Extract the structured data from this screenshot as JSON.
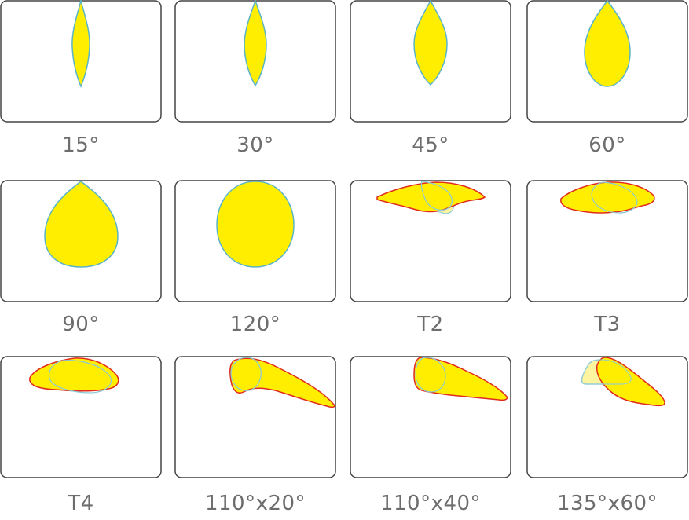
{
  "beams": [
    {
      "label": "15°",
      "kind": "symmetric",
      "icon": "narrow-beam-icon"
    },
    {
      "label": "30°",
      "kind": "symmetric",
      "icon": "narrow-beam-icon"
    },
    {
      "label": "45°",
      "kind": "symmetric",
      "icon": "medium-beam-icon"
    },
    {
      "label": "60°",
      "kind": "symmetric",
      "icon": "medium-beam-icon"
    },
    {
      "label": "90°",
      "kind": "symmetric",
      "icon": "wide-beam-icon"
    },
    {
      "label": "120°",
      "kind": "symmetric",
      "icon": "wide-beam-icon"
    },
    {
      "label": "T2",
      "kind": "asymmetric",
      "icon": "type-ii-beam-icon"
    },
    {
      "label": "T3",
      "kind": "asymmetric",
      "icon": "type-iii-beam-icon"
    },
    {
      "label": "T4",
      "kind": "asymmetric",
      "icon": "type-iv-beam-icon"
    },
    {
      "label": "110°x20°",
      "kind": "asymmetric",
      "icon": "oval-beam-icon"
    },
    {
      "label": "110°x40°",
      "kind": "asymmetric",
      "icon": "oval-beam-icon"
    },
    {
      "label": "135°x60°",
      "kind": "asymmetric",
      "icon": "oval-beam-icon"
    }
  ],
  "colors": {
    "fill": "#ffee00",
    "symmetric_outline": "#5ab4c8",
    "asymmetric_outline": "#e02a1e",
    "frame": "#444444",
    "caption": "#6d6d6d"
  }
}
